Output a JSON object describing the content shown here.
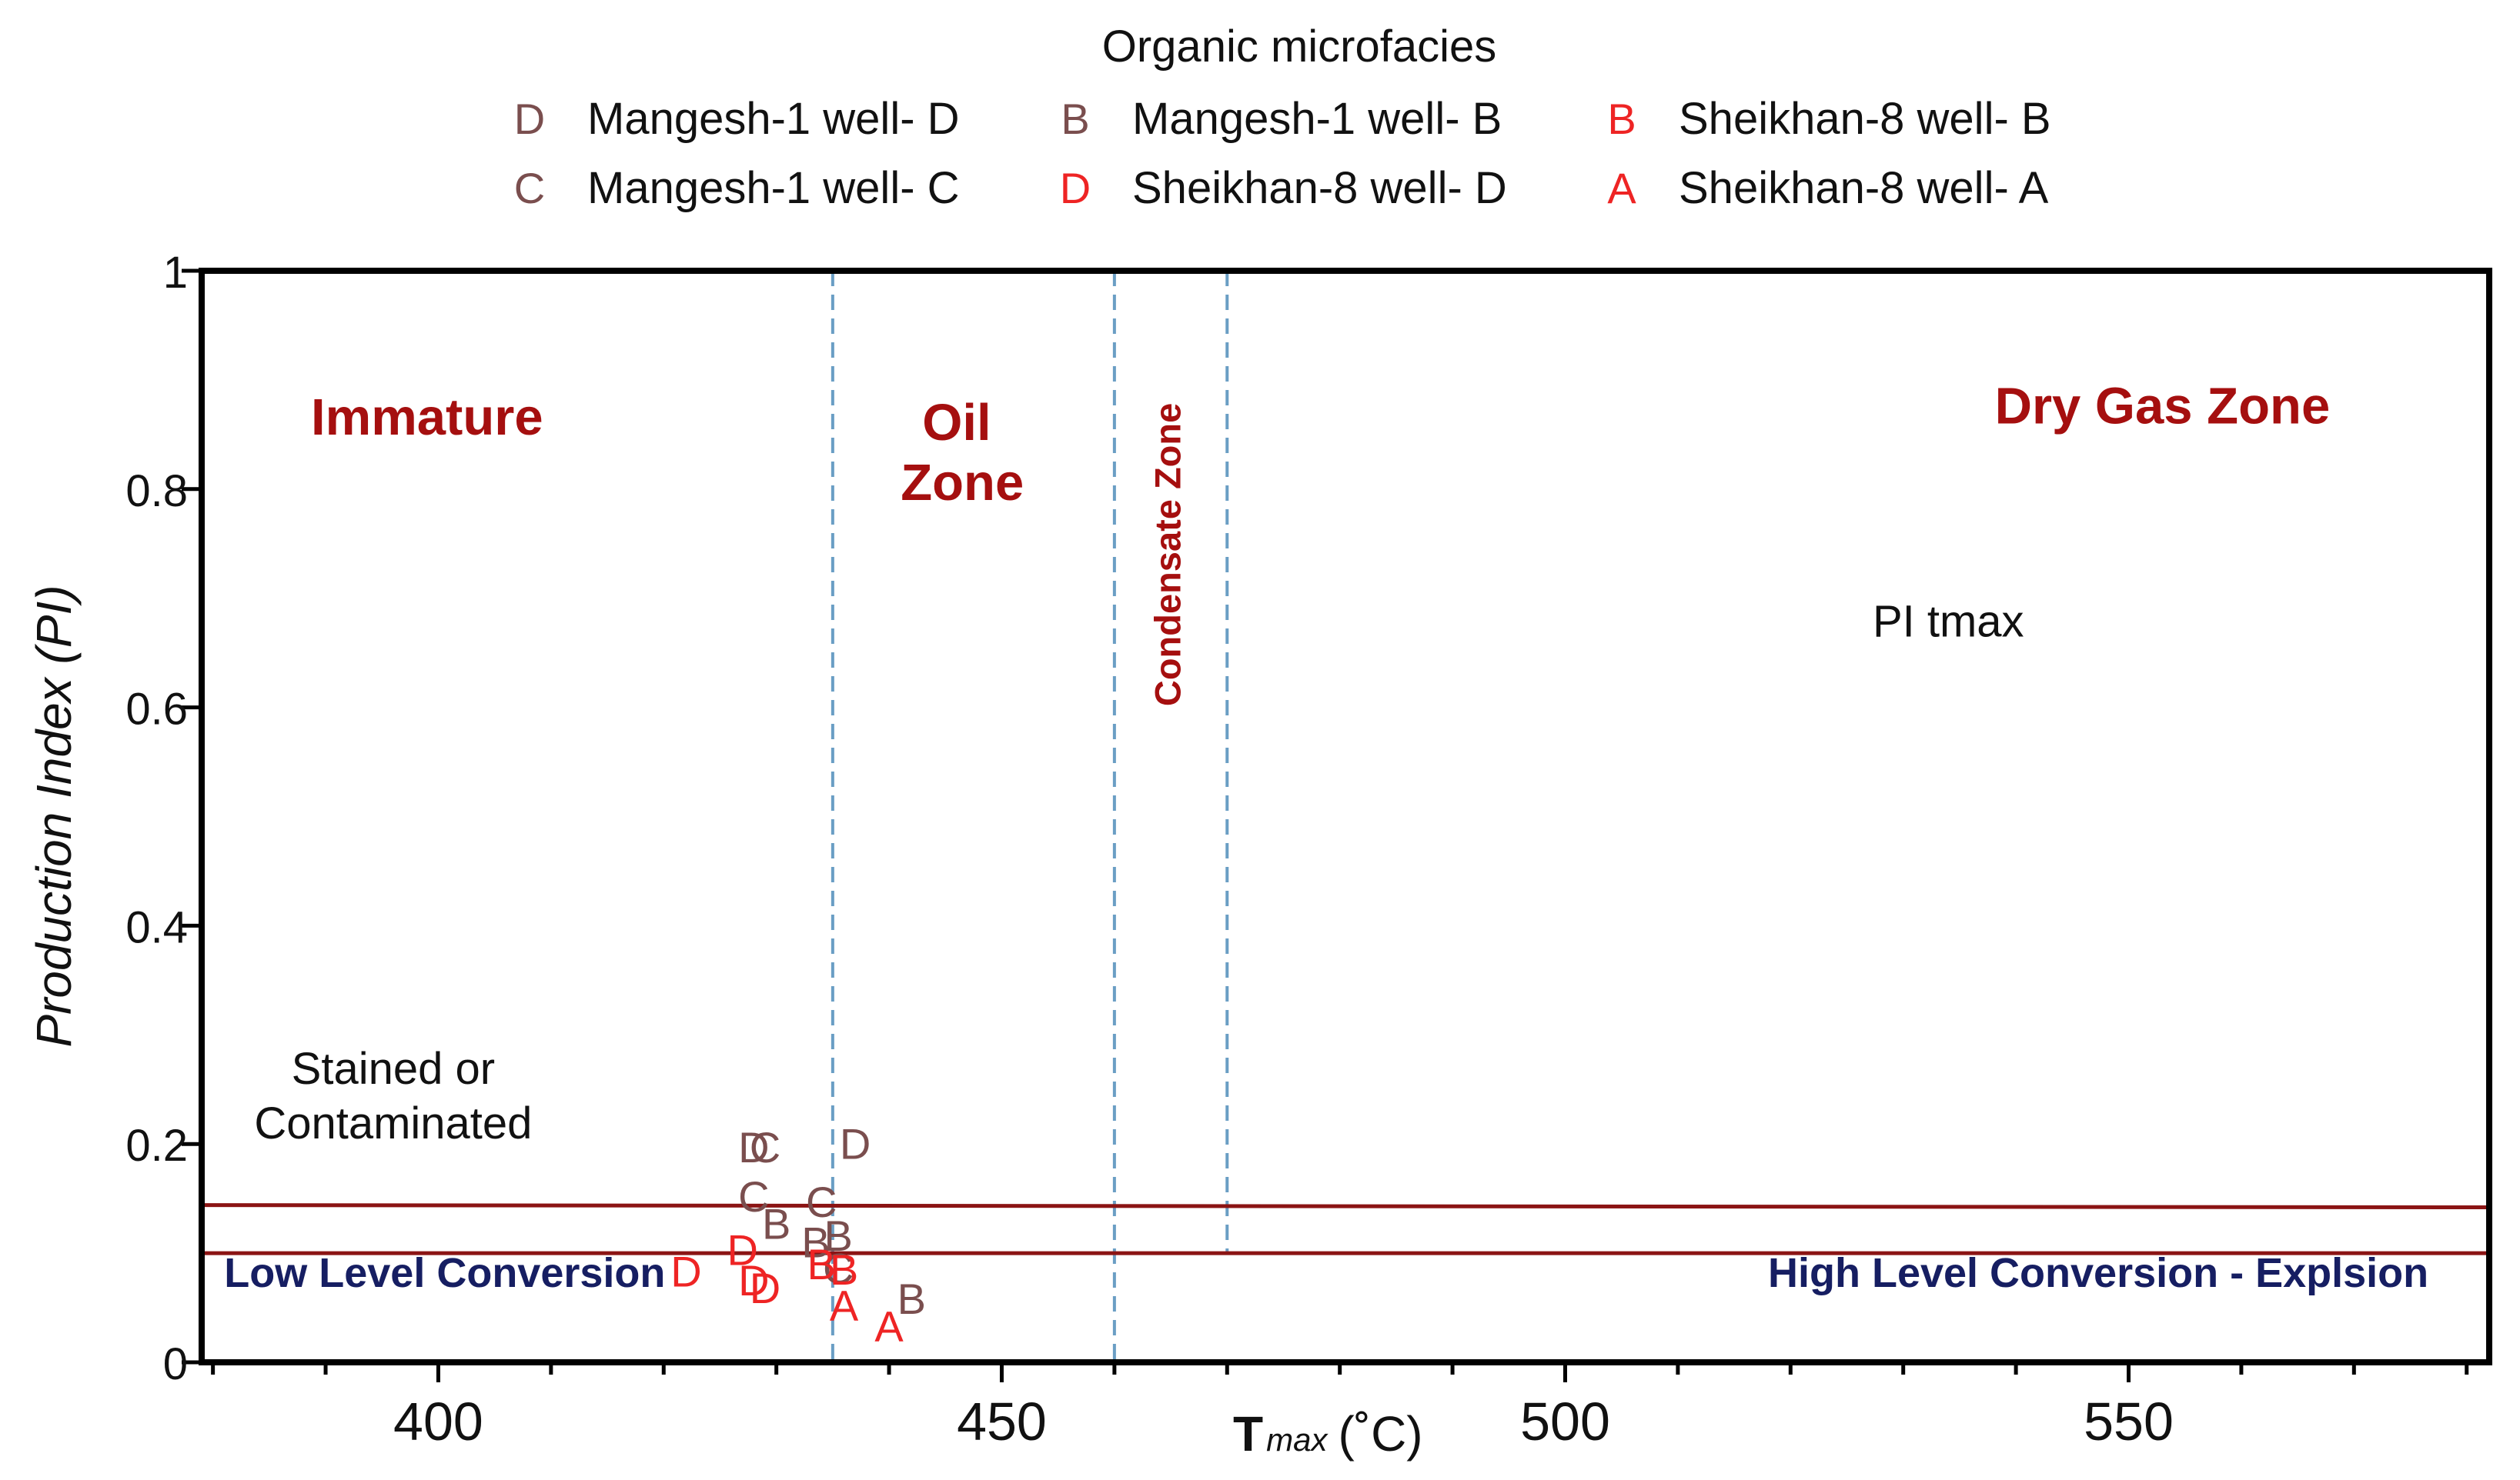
{
  "chart_data": {
    "type": "scatter",
    "title": "",
    "xlabel_main": "T",
    "xlabel_sub": "max",
    "xlabel_unit": "(˚C)",
    "ylabel": "Production Index (PI)",
    "xlim": [
      379,
      582
    ],
    "ylim": [
      0,
      1
    ],
    "x_ticks": [
      400,
      450,
      500,
      550
    ],
    "y_ticks": [
      0,
      0.2,
      0.4,
      0.6,
      0.8,
      1
    ],
    "y_tick_labels": [
      "0",
      "0.2",
      "0.4",
      "0.6",
      "0.8",
      "1"
    ],
    "grid": false,
    "legend": {
      "title": "Organic microfacies",
      "placement": "top-center",
      "entries": [
        {
          "marker": "D",
          "label": "Mangesh-1 well- D",
          "color": "#7a4e4e"
        },
        {
          "marker": "B",
          "label": "Mangesh-1 well- B",
          "color": "#7a4e4e"
        },
        {
          "marker": "B",
          "label": "Sheikhan-8 well- B",
          "color": "#ee2424"
        },
        {
          "marker": "C",
          "label": "Mangesh-1 well- C",
          "color": "#7a4e4e"
        },
        {
          "marker": "D",
          "label": "Sheikhan-8 well- D",
          "color": "#ee2424"
        },
        {
          "marker": "A",
          "label": "Sheikhan-8 well- A",
          "color": "#ee2424"
        }
      ]
    },
    "boundaries": [
      {
        "x": 435,
        "style": "dashed"
      },
      {
        "x": 460,
        "style": "dashed"
      },
      {
        "x": 470,
        "style": "dashed"
      }
    ],
    "pi_lines": [
      {
        "y_start": 0.144,
        "y_end": 0.142
      },
      {
        "y_start": 0.1,
        "y_end": 0.1
      }
    ],
    "zone_labels": [
      {
        "text": "Immature",
        "x": 399,
        "y": 0.85
      },
      {
        "text": "Oil",
        "x": 446,
        "y": 0.845
      },
      {
        "text": "Zone",
        "x": 446.5,
        "y": 0.79
      },
      {
        "text": "Dry Gas Zone",
        "x": 553,
        "y": 0.86
      }
    ],
    "vertical_labels": [
      {
        "text": "Condensate Zone",
        "x": 465,
        "y": 0.74
      }
    ],
    "annotations": [
      {
        "text": "PI tmax",
        "x": 534,
        "y": 0.665
      },
      {
        "text": "Stained or",
        "x": 396,
        "y": 0.255
      },
      {
        "text": "Contaminated",
        "x": 396,
        "y": 0.205
      }
    ],
    "conversion_labels": [
      {
        "text": "Low Level Conversion",
        "x": 381,
        "y": 0.069
      },
      {
        "text": "High Level Conversion -  Explsion",
        "x": 518,
        "y": 0.069
      }
    ],
    "series": [
      {
        "name": "Mangesh-1 well- D",
        "marker": "D",
        "color": "#7a4e4e",
        "points": [
          {
            "x": 428,
            "y": 0.197
          },
          {
            "x": 437,
            "y": 0.2
          }
        ]
      },
      {
        "name": "Mangesh-1 well- C",
        "marker": "C",
        "color": "#7a4e4e",
        "points": [
          {
            "x": 429,
            "y": 0.197
          },
          {
            "x": 428,
            "y": 0.152
          },
          {
            "x": 434,
            "y": 0.147
          },
          {
            "x": 435.5,
            "y": 0.086
          }
        ]
      },
      {
        "name": "Mangesh-1 well- B",
        "marker": "B",
        "color": "#7a4e4e",
        "points": [
          {
            "x": 430,
            "y": 0.127
          },
          {
            "x": 433.5,
            "y": 0.11
          },
          {
            "x": 435.5,
            "y": 0.116
          },
          {
            "x": 442,
            "y": 0.058
          }
        ]
      },
      {
        "name": "Sheikhan-8 well- D",
        "marker": "D",
        "color": "#ee2424",
        "points": [
          {
            "x": 422,
            "y": 0.083
          },
          {
            "x": 427,
            "y": 0.103
          },
          {
            "x": 428,
            "y": 0.075
          },
          {
            "x": 429,
            "y": 0.068
          }
        ]
      },
      {
        "name": "Sheikhan-8 well- B",
        "marker": "B",
        "color": "#ee2424",
        "points": [
          {
            "x": 434,
            "y": 0.09
          },
          {
            "x": 436,
            "y": 0.085
          }
        ]
      },
      {
        "name": "Sheikhan-8 well- A",
        "marker": "A",
        "color": "#ee2424",
        "points": [
          {
            "x": 436,
            "y": 0.052
          },
          {
            "x": 440,
            "y": 0.033
          }
        ]
      }
    ]
  }
}
